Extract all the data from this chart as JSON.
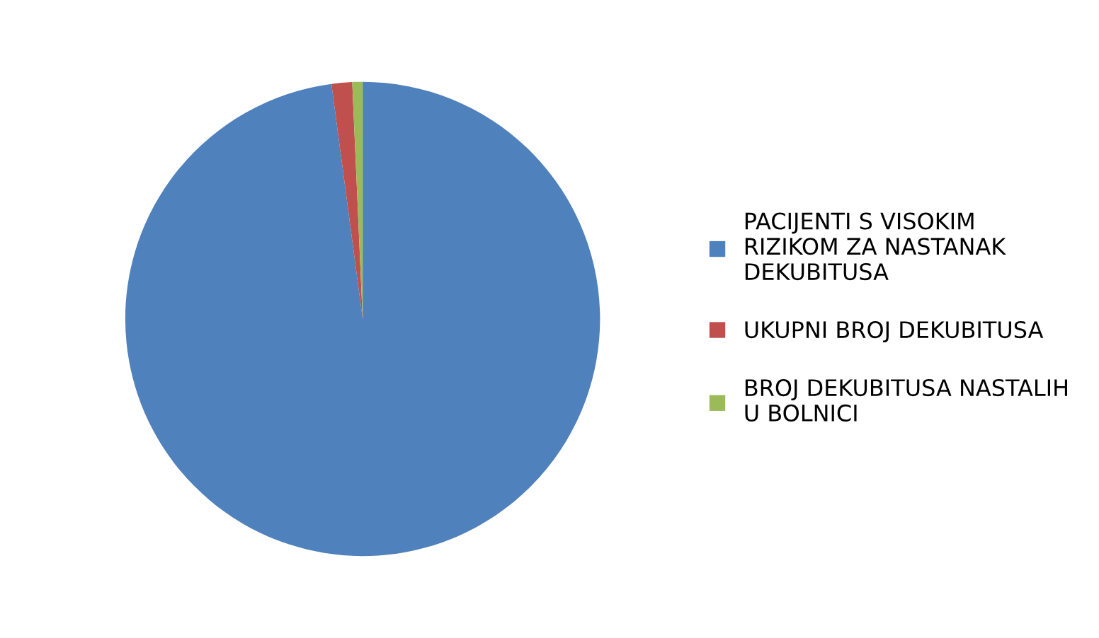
{
  "chart_data": {
    "type": "pie",
    "categories": [
      "PACIJENTI S VISOKIM RIZIKOM ZA NASTANAK DEKUBITUSA",
      "UKUPNI BROJ DEKUBITUSA",
      "BROJ DEKUBITUSA NASTALIH U BOLNICI"
    ],
    "values": [
      97.9,
      1.4,
      0.7
    ],
    "colors": [
      "#4f81bd",
      "#c0504d",
      "#9bbb59"
    ],
    "legend": "right"
  }
}
